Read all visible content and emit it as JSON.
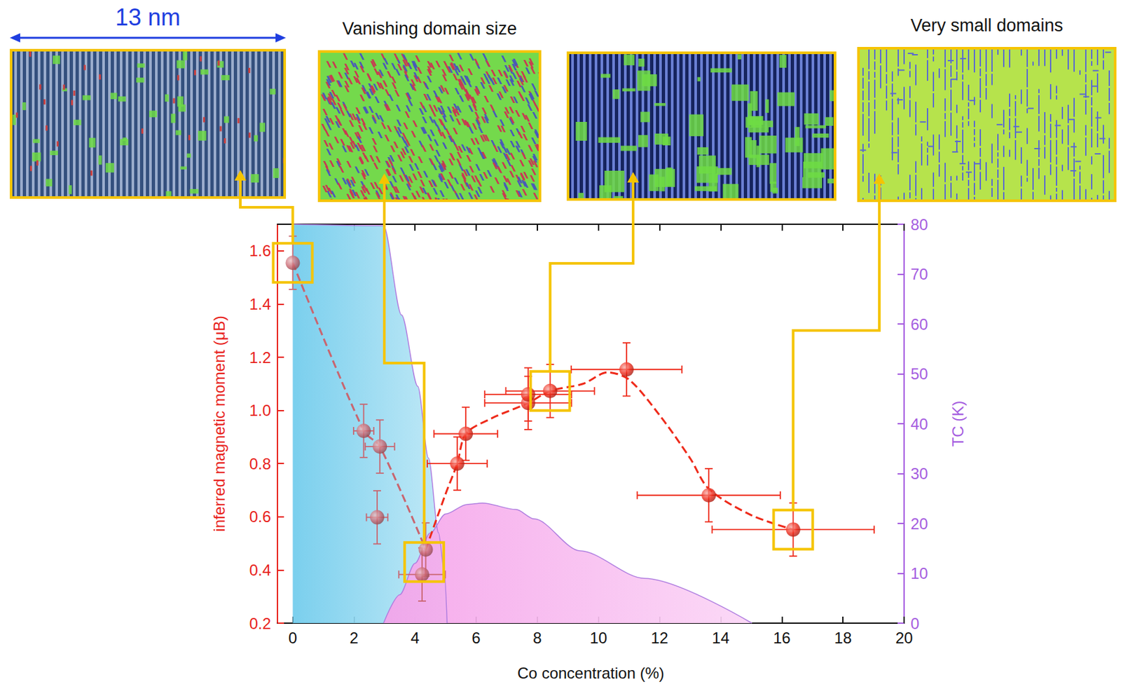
{
  "chart_data": {
    "type": "scatter",
    "x_label": "Co concentration (%)",
    "y_label": "inferred magnetic moment (μB)",
    "y2_label": "TC (K)",
    "xlim": [
      -0.5,
      20
    ],
    "xticks": [
      0,
      2,
      4,
      6,
      8,
      10,
      12,
      14,
      16,
      18,
      20
    ],
    "ylim": [
      0.2,
      1.7
    ],
    "yticks": [
      0.2,
      0.4,
      0.6,
      0.8,
      {
        "value": 1,
        "label": "1.0"
      },
      1.2,
      1.4,
      1.6
    ],
    "y2lim": [
      0,
      80
    ],
    "y2ticks": [
      0,
      10,
      20,
      30,
      40,
      50,
      60,
      70,
      80
    ],
    "grid": false,
    "series": [
      {
        "type": "area",
        "axis": "y2",
        "color": "#6fcbec",
        "x": [
          0,
          2.97,
          3.56,
          4.09,
          4.44,
          4.77,
          4.96,
          5.05
        ],
        "values": [
          80,
          79.7,
          61.8,
          47.5,
          33.1,
          18.1,
          10.2,
          0
        ]
      },
      {
        "type": "area",
        "axis": "y2",
        "color": "#f5a3ea",
        "x": [
          2.97,
          3.5,
          4.0,
          4.5,
          5.0,
          5.7,
          6.2,
          7.3,
          7.9,
          9.4,
          11.5,
          15.02
        ],
        "values": [
          0,
          5.7,
          12,
          18.1,
          21.9,
          23.8,
          24.1,
          22.8,
          20.9,
          14.5,
          9.0,
          0
        ]
      },
      {
        "type": "line",
        "line_style": "dashed",
        "color": "#c9656f",
        "x": [
          0,
          2.32,
          2.85,
          4.35
        ],
        "values": [
          1.555,
          0.923,
          0.864,
          0.477
        ]
      },
      {
        "type": "line",
        "line_style": "dashed",
        "color": "#ee2a1a",
        "x": [
          4.35,
          5.0,
          5.38,
          5.66,
          6.5,
          7.7,
          8.42,
          9.5,
          10.3,
          11.0,
          12.0,
          13.0,
          13.61,
          15.0,
          16.37
        ],
        "values": [
          0.477,
          0.686,
          0.8,
          0.912,
          0.97,
          1.028,
          1.073,
          1.1,
          1.143,
          1.116,
          0.982,
          0.82,
          0.705,
          0.606,
          0.552
        ]
      },
      {
        "type": "scatter",
        "marker": "circle",
        "color": "#c9656f",
        "x": [
          0,
          2.32,
          2.85,
          2.76,
          4.35,
          4.23
        ],
        "values": [
          1.555,
          0.923,
          0.864,
          0.598,
          0.477,
          0.383
        ],
        "x_err": [
          0,
          0.33,
          0.48,
          0.35,
          0,
          0.76
        ],
        "y_err": [
          0.1,
          0.1,
          0.1,
          0.1,
          0.1,
          0.1
        ]
      },
      {
        "type": "scatter",
        "marker": "circle",
        "color": "#ee2a1a",
        "x": [
          5.38,
          5.66,
          7.7,
          7.7,
          8.42,
          10.92,
          13.61,
          16.37
        ],
        "values": [
          0.8,
          0.912,
          1.028,
          1.06,
          1.073,
          1.154,
          0.681,
          0.552
        ],
        "x_err": [
          0.98,
          1.04,
          1.42,
          1.42,
          1.45,
          1.81,
          2.34,
          2.65
        ],
        "y_err": [
          0.1,
          0.1,
          0.1,
          0.1,
          0.1,
          0.1,
          0.1,
          0.1
        ]
      }
    ],
    "insets": [
      {
        "scale_bar": "13 nm",
        "x": 0,
        "y": 1.555
      },
      {
        "caption": "Vanishing domain size",
        "x": 4.3,
        "y": 0.43
      },
      {
        "x": 8.42,
        "y": 1.073
      },
      {
        "caption": "Very small domains",
        "x": 16.37,
        "y": 0.552
      }
    ]
  }
}
